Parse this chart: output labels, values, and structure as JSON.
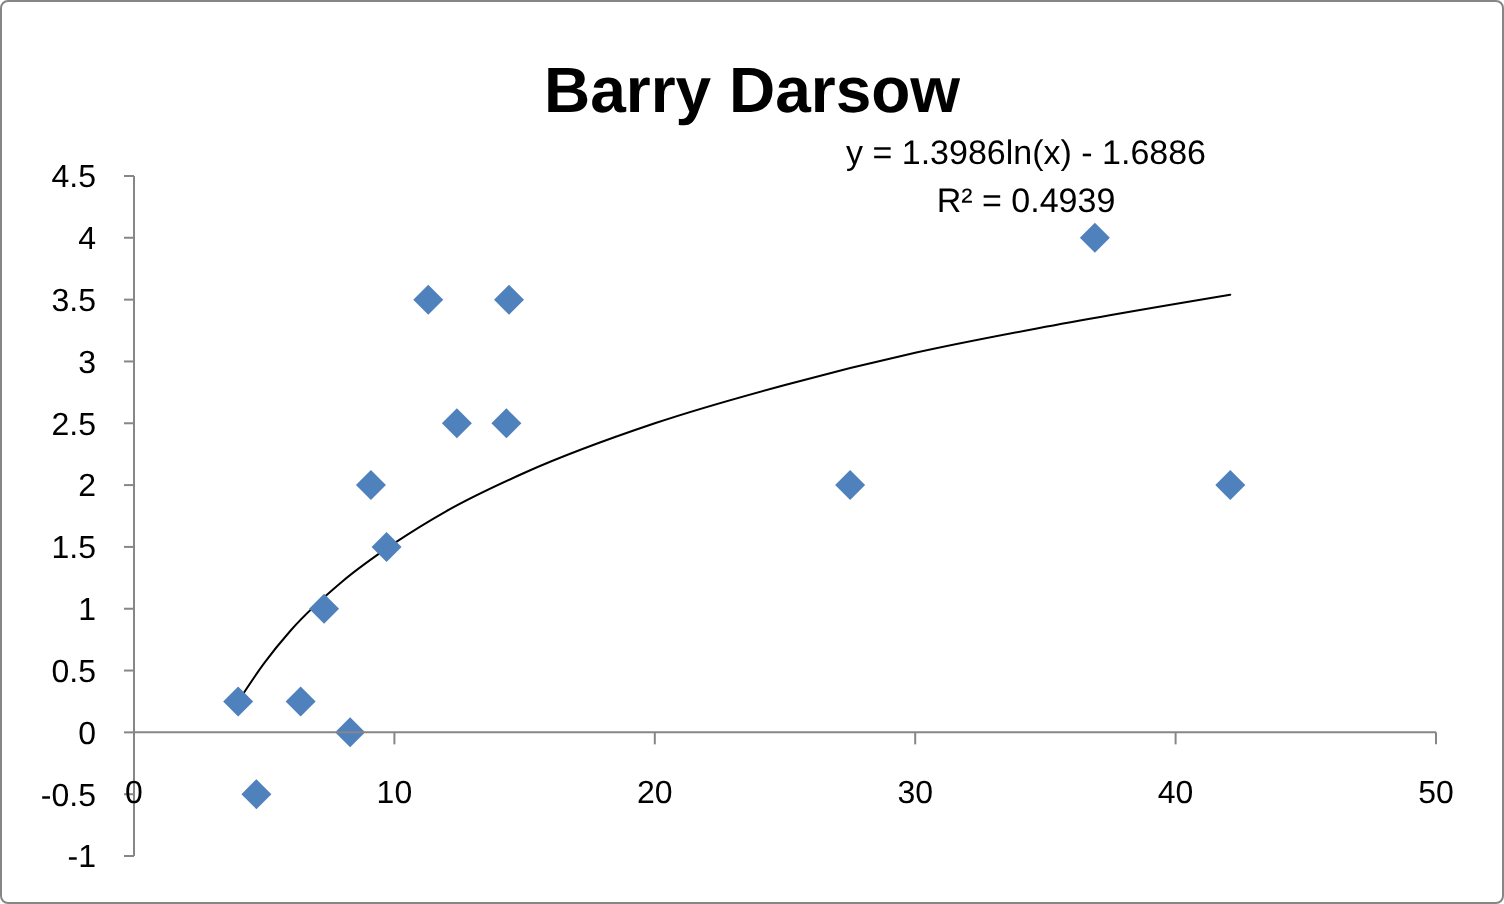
{
  "chart_data": {
    "type": "scatter",
    "title": "Barry Darsow",
    "annotations": [
      "y = 1.3986ln(x) - 1.6886",
      "R² = 0.4939"
    ],
    "xlim": [
      0,
      50
    ],
    "ylim": [
      -1,
      4.5
    ],
    "xticks": [
      0,
      10,
      20,
      30,
      40,
      50
    ],
    "yticks": [
      -1,
      -0.5,
      0,
      0.5,
      1,
      1.5,
      2,
      2.5,
      3,
      3.5,
      4,
      4.5
    ],
    "series": [
      {
        "color": "#4f81bd",
        "marker": "diamond",
        "x": [
          4.0,
          4.7,
          6.4,
          7.3,
          8.3,
          9.1,
          9.7,
          11.3,
          12.4,
          14.3,
          14.4,
          27.5,
          36.9,
          42.1
        ],
        "values": [
          0.25,
          -0.5,
          0.25,
          1,
          0,
          2,
          1.5,
          3.5,
          2.5,
          2.5,
          3.5,
          2,
          4,
          2
        ]
      },
      {
        "type": "line",
        "color": "#000000",
        "marker": "none",
        "x": [
          4,
          5,
          6,
          8,
          10,
          12,
          15,
          20,
          25,
          30,
          35,
          42.1
        ],
        "values": [
          0.25,
          0.56,
          0.82,
          1.22,
          1.53,
          1.79,
          2.1,
          2.5,
          2.81,
          3.07,
          3.28,
          3.54
        ]
      }
    ]
  }
}
